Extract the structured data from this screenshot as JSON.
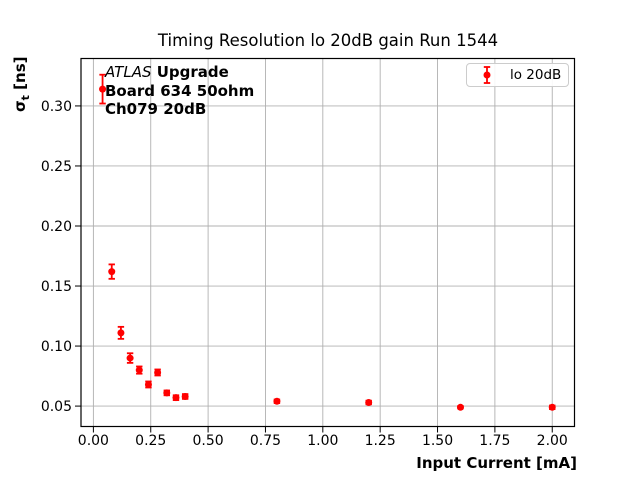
{
  "annotation": {
    "atlas": "ATLAS",
    "upgrade": " Upgrade",
    "line2": "Board 634 50ohm",
    "line3": "Ch079 20dB"
  },
  "axes": {
    "ylabel_sigma": "σ",
    "ylabel_sub": "t",
    "ylabel_unit": " [ns]"
  },
  "colors": {
    "series_red": "#ff0000",
    "grid": "#b0b0b0",
    "spine": "#000000",
    "legend_border": "#cccccc"
  },
  "chart_data": {
    "type": "scatter",
    "title": "Timing Resolution lo 20dB gain Run 1544",
    "xlabel": "Input Current [mA]",
    "ylabel": "σ_t [ns]",
    "xlim": [
      -0.054,
      2.097
    ],
    "ylim": [
      0.033,
      0.3395
    ],
    "grid": true,
    "legend_position": "upper right",
    "xticks": {
      "values": [
        0.0,
        0.25,
        0.5,
        0.75,
        1.0,
        1.25,
        1.5,
        1.75,
        2.0
      ],
      "labels": [
        "0.00",
        "0.25",
        "0.50",
        "0.75",
        "1.00",
        "1.25",
        "1.50",
        "1.75",
        "2.00"
      ]
    },
    "yticks": {
      "values": [
        0.05,
        0.1,
        0.15,
        0.2,
        0.25,
        0.3
      ],
      "labels": [
        "0.05",
        "0.10",
        "0.15",
        "0.20",
        "0.25",
        "0.30"
      ]
    },
    "series": [
      {
        "name": "lo 20dB",
        "color": "#ff0000",
        "marker": "circle",
        "x": [
          0.04,
          0.08,
          0.12,
          0.16,
          0.2,
          0.24,
          0.28,
          0.32,
          0.36,
          0.4,
          0.8,
          1.2,
          1.6,
          2.0
        ],
        "y": [
          0.314,
          0.162,
          0.111,
          0.09,
          0.08,
          0.068,
          0.078,
          0.061,
          0.057,
          0.058,
          0.054,
          0.053,
          0.049,
          0.049
        ],
        "yerr": [
          0.012,
          0.006,
          0.005,
          0.004,
          0.003,
          0.0025,
          0.0025,
          0.002,
          0.002,
          0.002,
          0.0015,
          0.0015,
          0.001,
          0.0015
        ]
      }
    ]
  }
}
